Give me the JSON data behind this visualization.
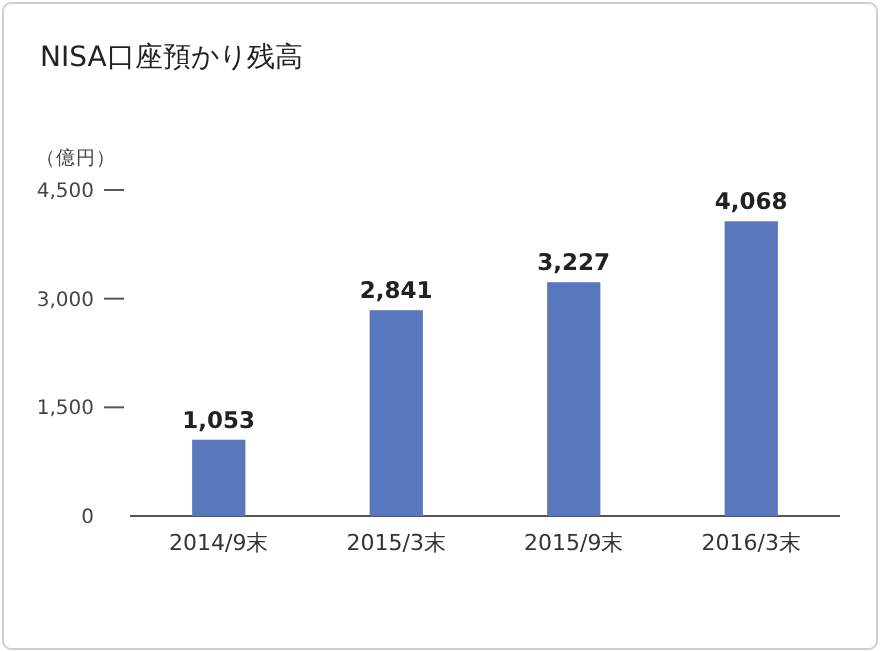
{
  "chart_data": {
    "type": "bar",
    "title": "NISA口座預かり残高",
    "ylabel": "（億円）",
    "categories": [
      "2014/9末",
      "2015/3末",
      "2015/9末",
      "2016/3末"
    ],
    "values": [
      1053,
      2841,
      3227,
      4068
    ],
    "value_labels": [
      "1,053",
      "2,841",
      "3,227",
      "4,068"
    ],
    "color": "#5877bd",
    "ylim": [
      0,
      4500
    ],
    "yticks": [
      {
        "value": 0,
        "label": "0"
      },
      {
        "value": 1500,
        "label": "1,500"
      },
      {
        "value": 3000,
        "label": "3,000"
      },
      {
        "value": 4500,
        "label": "4,500"
      }
    ],
    "grid": false
  }
}
